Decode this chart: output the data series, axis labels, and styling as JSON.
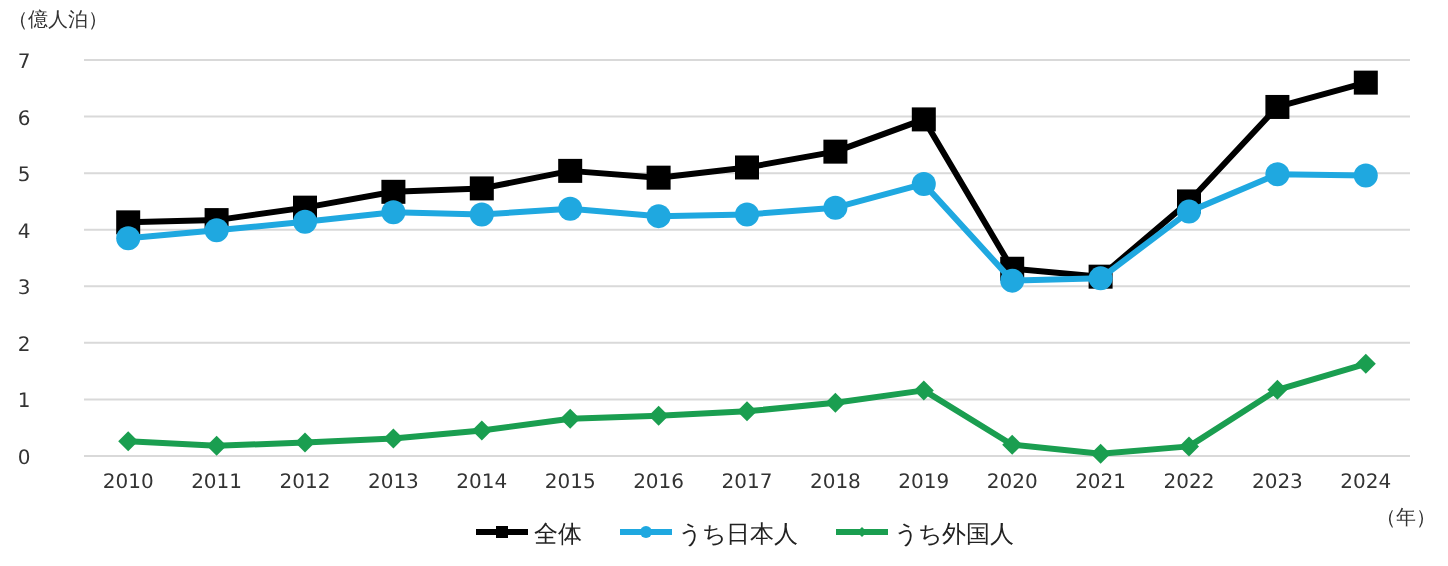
{
  "chart_data": {
    "type": "line",
    "ylabel": "（億人泊）",
    "xlabel": "（年）",
    "categories": [
      "2010",
      "2011",
      "2012",
      "2013",
      "2014",
      "2015",
      "2016",
      "2017",
      "2018",
      "2019",
      "2020",
      "2021",
      "2022",
      "2023",
      "2024"
    ],
    "series": [
      {
        "name": "全体",
        "color": "#000000",
        "marker": "square",
        "values": [
          4.13,
          4.17,
          4.39,
          4.67,
          4.73,
          5.04,
          4.92,
          5.1,
          5.38,
          5.95,
          3.31,
          3.17,
          4.5,
          6.17,
          6.6
        ]
      },
      {
        "name": "うち日本人",
        "color": "#1fa8e0",
        "marker": "circle",
        "values": [
          3.85,
          3.99,
          4.14,
          4.31,
          4.27,
          4.37,
          4.24,
          4.27,
          4.39,
          4.81,
          3.1,
          3.14,
          4.32,
          4.98,
          4.96
        ]
      },
      {
        "name": "うち外国人",
        "color": "#1a9e50",
        "marker": "diamond",
        "values": [
          0.26,
          0.18,
          0.24,
          0.31,
          0.45,
          0.66,
          0.71,
          0.79,
          0.94,
          1.16,
          0.2,
          0.04,
          0.17,
          1.17,
          1.63
        ]
      }
    ],
    "ylim": [
      0,
      7
    ],
    "yticks": [
      0,
      1,
      2,
      3,
      4,
      5,
      6,
      7
    ],
    "grid": "y",
    "legend": "bottom"
  }
}
